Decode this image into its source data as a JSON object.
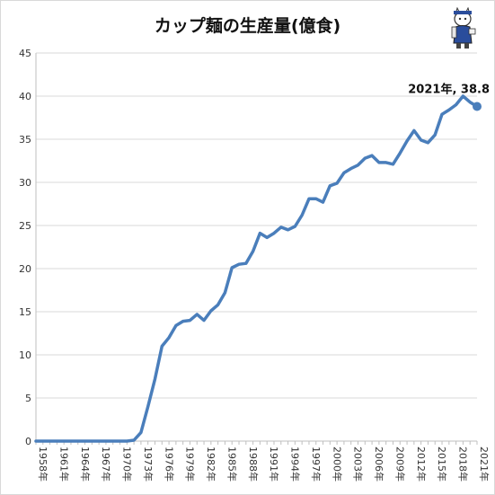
{
  "chart_data": {
    "type": "line",
    "title": "カップ麺の生産量(億食)",
    "xlabel": "",
    "ylabel": "",
    "ylim": [
      0,
      45
    ],
    "y_ticks": [
      0,
      5,
      10,
      15,
      20,
      25,
      30,
      35,
      40,
      45
    ],
    "x_tick_labels": [
      "1958年",
      "1961年",
      "1964年",
      "1967年",
      "1970年",
      "1973年",
      "1976年",
      "1979年",
      "1982年",
      "1985年",
      "1988年",
      "1991年",
      "1994年",
      "1997年",
      "2000年",
      "2003年",
      "2006年",
      "2009年",
      "2012年",
      "2015年",
      "2018年",
      "2021年"
    ],
    "grid": true,
    "legend": "none",
    "line_color": "#4a7ebb",
    "x": [
      1958,
      1959,
      1960,
      1961,
      1962,
      1963,
      1964,
      1965,
      1966,
      1967,
      1968,
      1969,
      1970,
      1971,
      1972,
      1973,
      1974,
      1975,
      1976,
      1977,
      1978,
      1979,
      1980,
      1981,
      1982,
      1983,
      1984,
      1985,
      1986,
      1987,
      1988,
      1989,
      1990,
      1991,
      1992,
      1993,
      1994,
      1995,
      1996,
      1997,
      1998,
      1999,
      2000,
      2001,
      2002,
      2003,
      2004,
      2005,
      2006,
      2007,
      2008,
      2009,
      2010,
      2011,
      2012,
      2013,
      2014,
      2015,
      2016,
      2017,
      2018,
      2019,
      2020,
      2021
    ],
    "series": [
      {
        "values": [
          0,
          0,
          0,
          0,
          0,
          0,
          0,
          0,
          0,
          0,
          0,
          0,
          0,
          0,
          0.1,
          1.0,
          4.0,
          7.2,
          11.0,
          12.0,
          13.4,
          13.9,
          14.0,
          14.7,
          14.0,
          15.1,
          15.8,
          17.2,
          20.1,
          20.5,
          20.6,
          22.0,
          24.1,
          23.6,
          24.1,
          24.8,
          24.5,
          24.9,
          26.2,
          28.1,
          28.1,
          27.7,
          29.6,
          29.9,
          31.1,
          31.6,
          32.0,
          32.8,
          33.1,
          32.3,
          32.3,
          32.1,
          33.4,
          34.8,
          36.0,
          34.9,
          34.6,
          35.5,
          37.9,
          38.4,
          39.0,
          40.0,
          39.3,
          38.8
        ]
      }
    ],
    "annotation": {
      "text": "2021年, 38.8",
      "x": 2021,
      "y": 38.8
    }
  }
}
